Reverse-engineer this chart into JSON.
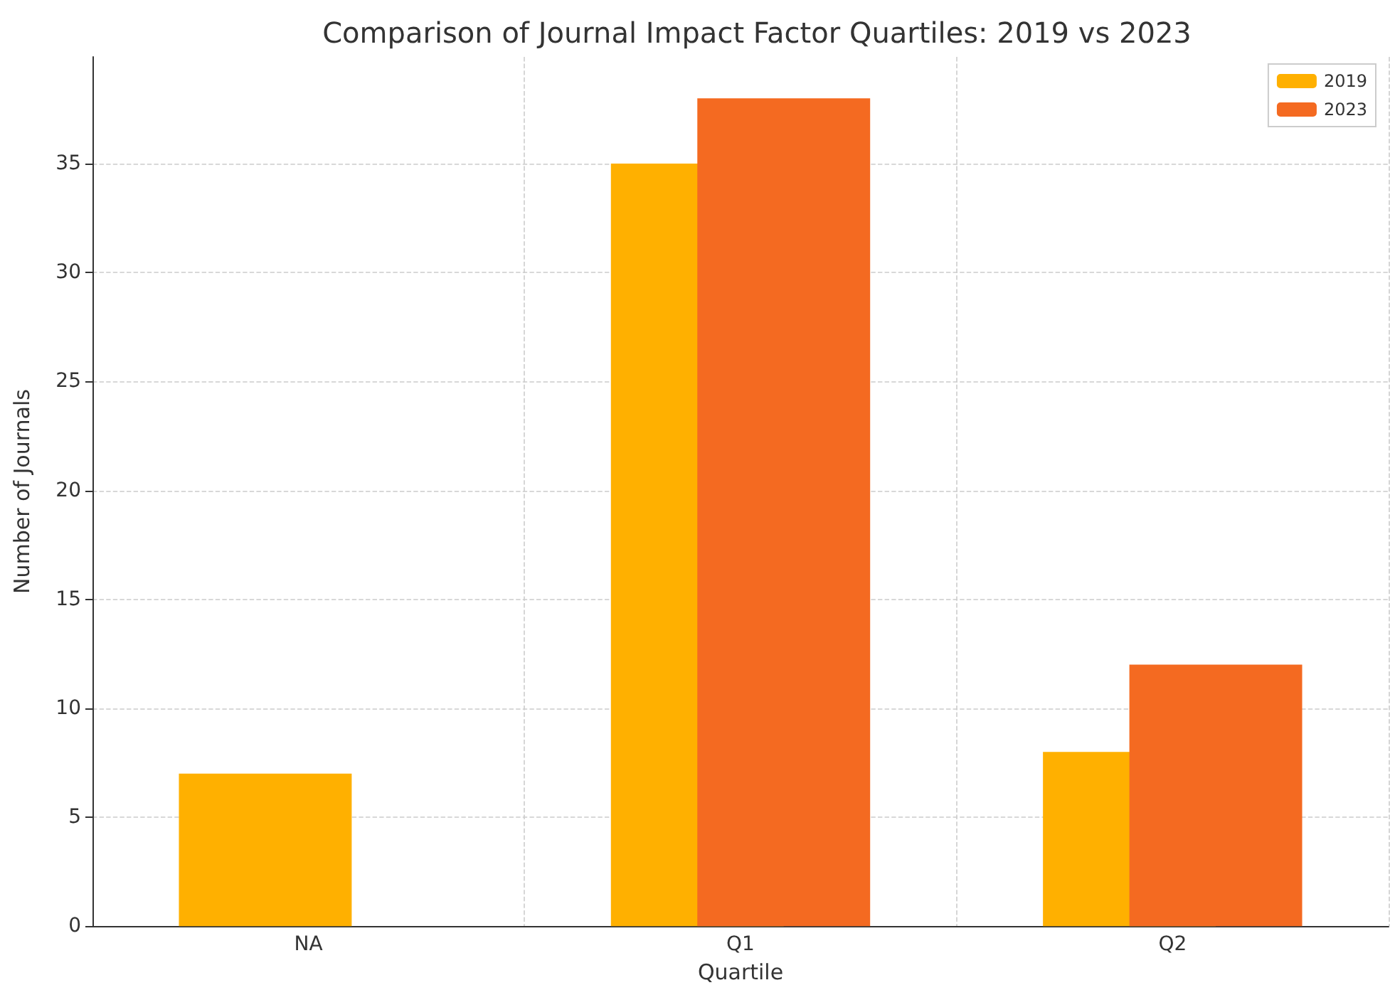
{
  "chart_data": {
    "type": "bar",
    "title": "Comparison of Journal Impact Factor Quartiles: 2019 vs 2023",
    "xlabel": "Quartile",
    "ylabel": "Number of Journals",
    "categories": [
      "NA",
      "Q1",
      "Q2"
    ],
    "series": [
      {
        "name": "2019",
        "color": "#ffb000",
        "values": [
          7,
          35,
          8
        ]
      },
      {
        "name": "2023",
        "color": "#f46a21",
        "values": [
          null,
          38,
          12
        ]
      }
    ],
    "ylim": [
      0,
      39.9
    ],
    "yticks": [
      0,
      5,
      10,
      15,
      20,
      25,
      30,
      35
    ],
    "grid": true,
    "legend": "top right"
  }
}
